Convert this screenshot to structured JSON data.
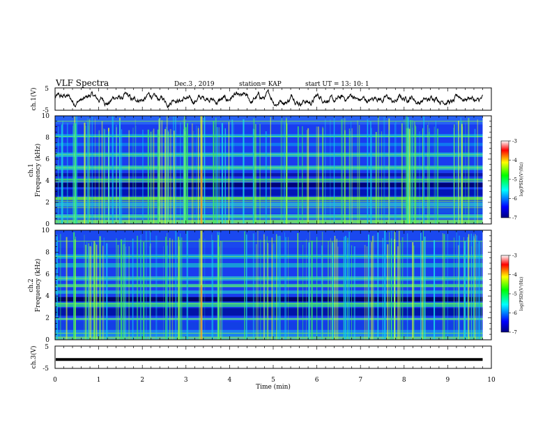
{
  "header": {
    "title": "VLF Spectra",
    "date": "Dec.3  , 2019",
    "station": "station= KAP",
    "start": "start  UT  =   13: 10: 1"
  },
  "chart_data": [
    {
      "type": "line",
      "name": "waveform-ch1",
      "ylabel": "ch.1(V)",
      "xlim": [
        0,
        10
      ],
      "ylim": [
        -5,
        5
      ],
      "yticks": [
        "5",
        "-5"
      ],
      "x_extent_min": 9.8,
      "description_of_values": "noisy waveform oscillating mostly between about -3 V and +3 V"
    },
    {
      "type": "heatmap",
      "name": "spectrogram-ch1",
      "ylabel_line1": "ch.1",
      "ylabel_line2": "Frequency  (kHz)",
      "xlim": [
        0,
        10
      ],
      "ylim": [
        0,
        10
      ],
      "yticks": [
        "0",
        "2",
        "4",
        "6",
        "8",
        "10"
      ],
      "colorbar": {
        "label": "log(PSD)(V²/Hz)",
        "range": [
          -7,
          -3
        ],
        "ticks": [
          "-3",
          "-4",
          "-5",
          "-6",
          "-7"
        ]
      }
    },
    {
      "type": "heatmap",
      "name": "spectrogram-ch2",
      "ylabel_line1": "ch.2",
      "ylabel_line2": "Frequency  (kHz)",
      "xlim": [
        0,
        10
      ],
      "ylim": [
        0,
        10
      ],
      "yticks": [
        "0",
        "2",
        "4",
        "6",
        "8",
        "10"
      ],
      "colorbar": {
        "label": "log(PSD)(V²/Hz)",
        "range": [
          -7,
          -3
        ],
        "ticks": [
          "-3",
          "-4",
          "-5",
          "-6",
          "-7"
        ]
      }
    },
    {
      "type": "line",
      "name": "waveform-ch3",
      "ylabel": "ch.3(V)",
      "xlim": [
        0,
        10
      ],
      "ylim": [
        -5,
        5
      ],
      "yticks": [
        "5",
        "-5"
      ],
      "constant_value": -1
    }
  ],
  "xaxis": {
    "label": "Time  (min)",
    "ticks": [
      "0",
      "1",
      "2",
      "3",
      "4",
      "5",
      "6",
      "7",
      "8",
      "9",
      "10"
    ]
  }
}
